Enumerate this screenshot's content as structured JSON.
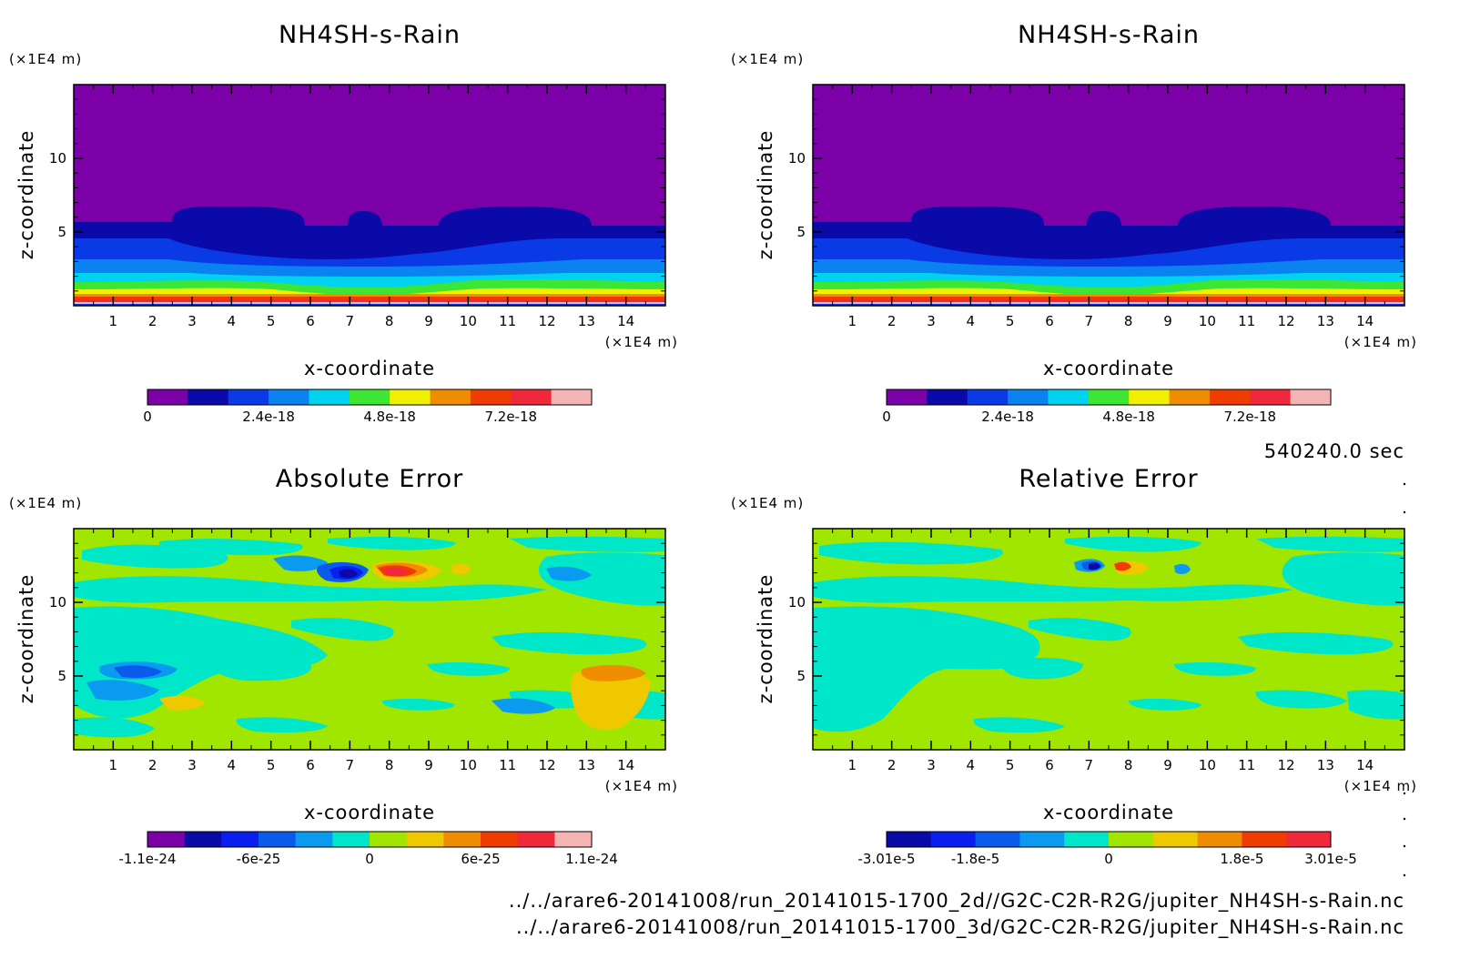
{
  "page": {
    "time_label": "540240.0 sec",
    "file_lines": [
      "../../arare6-20141008/run_20141015-1700_2d//G2C-C2R-R2G/jupiter_NH4SH-s-Rain.nc",
      "../../arare6-20141008/run_20141015-1700_3d/G2C-C2R-R2G/jupiter_NH4SH-s-Rain.nc"
    ]
  },
  "chart_data": [
    {
      "type": "heatmap",
      "title": "NH4SH-s-Rain",
      "xlabel": "x-coordinate",
      "ylabel": "z-coordinate",
      "x_unit": "(×1E4 m)",
      "y_unit": "(×1E4 m)",
      "xlim": [
        0,
        15
      ],
      "ylim": [
        0,
        15
      ],
      "x_ticks": [
        "1",
        "2",
        "3",
        "4",
        "5",
        "6",
        "7",
        "8",
        "9",
        "10",
        "11",
        "12",
        "13",
        "14"
      ],
      "y_ticks": [
        "5",
        "10"
      ],
      "colorbar": {
        "colors": [
          "#7b00a8",
          "#0a0aa8",
          "#0a3ae6",
          "#0a82f0",
          "#00d2f0",
          "#3ce632",
          "#f0f000",
          "#f08c00",
          "#f03c00",
          "#f0283c",
          "#f5b4b4"
        ],
        "labels": [
          "0",
          "2.4e-18",
          "4.8e-18",
          "7.2e-18"
        ]
      },
      "description": "background near 0 above z≈6; bands of increasing values toward z=0; maxima (≈7e-18 to 8e-18) in a thin layer near the bottom"
    },
    {
      "type": "heatmap",
      "title": "NH4SH-s-Rain",
      "xlabel": "x-coordinate",
      "ylabel": "z-coordinate",
      "x_unit": "(×1E4 m)",
      "y_unit": "(×1E4 m)",
      "xlim": [
        0,
        15
      ],
      "ylim": [
        0,
        15
      ],
      "x_ticks": [
        "1",
        "2",
        "3",
        "4",
        "5",
        "6",
        "7",
        "8",
        "9",
        "10",
        "11",
        "12",
        "13",
        "14"
      ],
      "y_ticks": [
        "5",
        "10"
      ],
      "colorbar": {
        "colors": [
          "#7b00a8",
          "#0a0aa8",
          "#0a3ae6",
          "#0a82f0",
          "#00d2f0",
          "#3ce632",
          "#f0f000",
          "#f08c00",
          "#f03c00",
          "#f0283c",
          "#f5b4b4"
        ],
        "labels": [
          "0",
          "2.4e-18",
          "4.8e-18",
          "7.2e-18"
        ]
      }
    },
    {
      "type": "heatmap",
      "title": "Absolute Error",
      "xlabel": "x-coordinate",
      "ylabel": "z-coordinate",
      "x_unit": "(×1E4 m)",
      "y_unit": "(×1E4 m)",
      "xlim": [
        0,
        15
      ],
      "ylim": [
        0,
        15
      ],
      "x_ticks": [
        "1",
        "2",
        "3",
        "4",
        "5",
        "6",
        "7",
        "8",
        "9",
        "10",
        "11",
        "12",
        "13",
        "14"
      ],
      "y_ticks": [
        "5",
        "10"
      ],
      "colorbar": {
        "colors": [
          "#7b00a8",
          "#0a0aa8",
          "#0a1ef0",
          "#0a5aeb",
          "#0a9bf0",
          "#00e6c8",
          "#a0e600",
          "#f0c800",
          "#f08c00",
          "#f03c00",
          "#f0283c",
          "#f5b4b4"
        ],
        "labels": [
          "-1.1e-24",
          "-6e-25",
          "0",
          "6e-25",
          "1.1e-24"
        ]
      }
    },
    {
      "type": "heatmap",
      "title": "Relative Error",
      "xlabel": "x-coordinate",
      "ylabel": "z-coordinate",
      "x_unit": "(×1E4 m)",
      "y_unit": "(×1E4 m)",
      "xlim": [
        0,
        15
      ],
      "ylim": [
        0,
        15
      ],
      "x_ticks": [
        "1",
        "2",
        "3",
        "4",
        "5",
        "6",
        "7",
        "8",
        "9",
        "10",
        "11",
        "12",
        "13",
        "14"
      ],
      "y_ticks": [
        "5",
        "10"
      ],
      "colorbar": {
        "colors": [
          "#0a0aa8",
          "#0a1ef0",
          "#0a5aeb",
          "#0a9bf0",
          "#00e6c8",
          "#a0e600",
          "#f0c800",
          "#f08c00",
          "#f03c00",
          "#f0283c"
        ],
        "labels": [
          "-3.01e-5",
          "-1.8e-5",
          "0",
          "1.8e-5",
          "3.01e-5"
        ]
      }
    }
  ]
}
